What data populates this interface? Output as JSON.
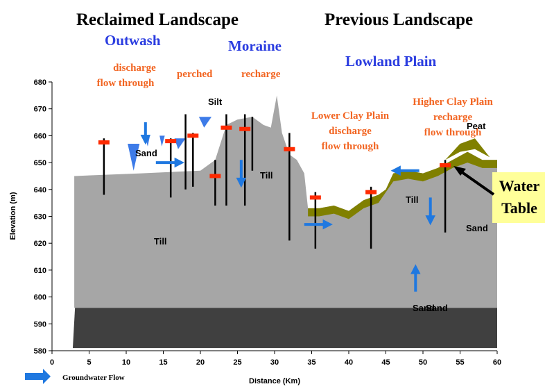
{
  "titles": {
    "left": "Reclaimed Landscape",
    "right": "Previous Landscape"
  },
  "regions": {
    "outwash": "Outwash",
    "moraine": "Moraine",
    "lowland": "Lowland Plain"
  },
  "flow_notes": {
    "outwash": [
      "discharge",
      "flow through"
    ],
    "perched": "perched",
    "recharge": "recharge",
    "lower_clay": [
      "Lower Clay Plain",
      "discharge",
      "flow through"
    ],
    "higher_clay": [
      "Higher Clay Plain",
      "recharge",
      "flow through"
    ]
  },
  "materials": {
    "silt": "Silt",
    "sand_left": "Sand",
    "till_mid": "Till",
    "till_left": "Till",
    "till_right": "Till",
    "peat": "Peat",
    "sand_right": "Sand",
    "sand_bottom_a": "Sand",
    "sand_bottom_b": "Sand"
  },
  "callout": [
    "Water",
    "Table"
  ],
  "legend": "Groundwater Flow",
  "axes": {
    "x_label": "Distance (Km)",
    "y_label": "Elevation (m)",
    "xlim": [
      0,
      60
    ],
    "ylim": [
      580,
      680
    ],
    "xticks": [
      0,
      5,
      10,
      15,
      20,
      25,
      30,
      35,
      40,
      45,
      50,
      55,
      60
    ],
    "yticks": [
      580,
      590,
      600,
      610,
      620,
      630,
      640,
      650,
      660,
      670,
      680
    ]
  }
}
